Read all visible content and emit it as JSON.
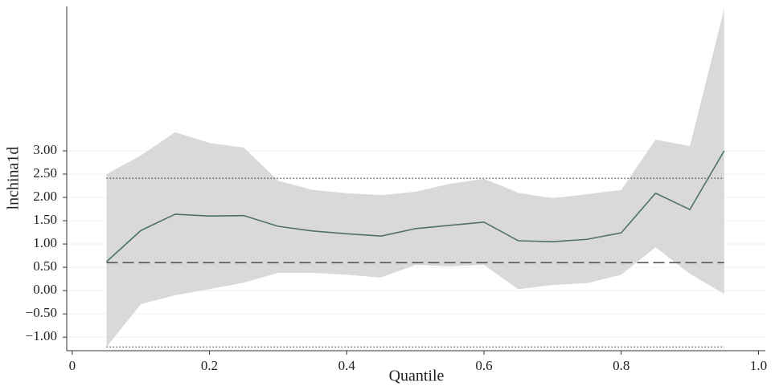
{
  "chart_data": {
    "type": "quantile-band",
    "x_label": "Quantile",
    "y_label": "lnchina1d",
    "x": [
      0.05,
      0.1,
      0.15,
      0.2,
      0.25,
      0.3,
      0.35,
      0.4,
      0.45,
      0.5,
      0.55,
      0.6,
      0.65,
      0.7,
      0.75,
      0.8,
      0.85,
      0.9,
      0.95
    ],
    "estimate": [
      0.62,
      1.29,
      1.64,
      1.6,
      1.61,
      1.38,
      1.28,
      1.22,
      1.17,
      1.33,
      1.4,
      1.47,
      1.07,
      1.05,
      1.1,
      1.24,
      2.09,
      1.74,
      3.0
    ],
    "ci_upper": [
      2.5,
      2.9,
      3.4,
      3.17,
      3.07,
      2.36,
      2.16,
      2.09,
      2.05,
      2.12,
      2.29,
      2.4,
      2.1,
      1.98,
      2.07,
      2.16,
      3.24,
      3.1,
      6.05
    ],
    "ci_lower": [
      -1.21,
      -0.29,
      -0.1,
      0.03,
      0.17,
      0.38,
      0.38,
      0.34,
      0.28,
      0.55,
      0.52,
      0.55,
      0.03,
      0.12,
      0.16,
      0.34,
      0.93,
      0.36,
      -0.07
    ],
    "ols_estimate": 0.6,
    "ols_ci": [
      -1.21,
      2.41
    ],
    "line_color": "#4f7363",
    "band_color": "#d9d9d9",
    "ols_color": "#555555",
    "xlim": [
      -0.008,
      1.01
    ],
    "ylim": [
      -1.29,
      6.1
    ],
    "xticks": [
      0,
      0.2,
      0.4,
      0.6,
      0.8,
      {
        "value": 1,
        "label": "1.0"
      }
    ],
    "yticks": [
      {
        "value": -1,
        "label": "−1.00"
      },
      {
        "value": -0.5,
        "label": "−0.50"
      },
      {
        "value": 0,
        "label": "0.00"
      },
      {
        "value": 0.5,
        "label": "0.50"
      },
      {
        "value": 1,
        "label": "1.00"
      },
      {
        "value": 1.5,
        "label": "1.50"
      },
      {
        "value": 2,
        "label": "2.00"
      },
      {
        "value": 2.5,
        "label": "2.50"
      },
      {
        "value": 3,
        "label": "3.00"
      }
    ],
    "grid": true
  }
}
